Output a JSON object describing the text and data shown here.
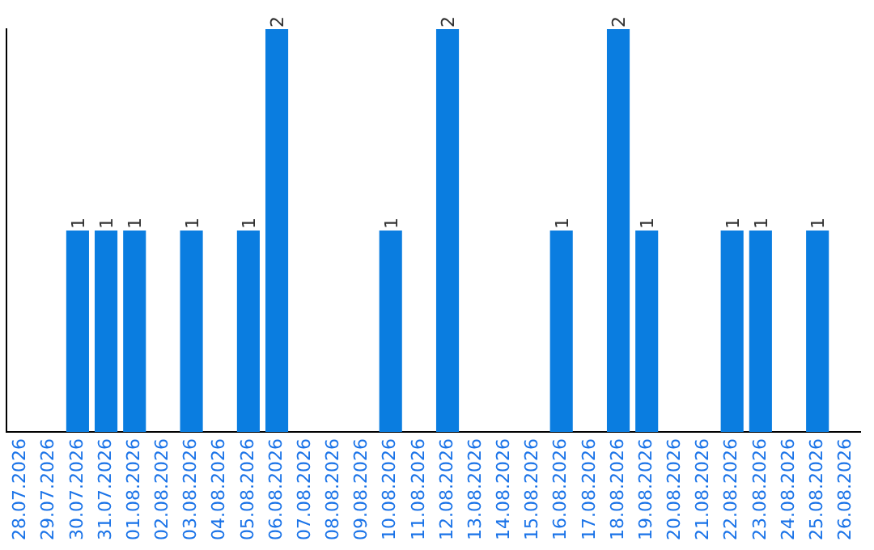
{
  "chart_data": {
    "type": "bar",
    "categories": [
      "28.07.2026",
      "29.07.2026",
      "30.07.2026",
      "31.07.2026",
      "01.08.2026",
      "02.08.2026",
      "03.08.2026",
      "04.08.2026",
      "05.08.2026",
      "06.08.2026",
      "07.08.2026",
      "08.08.2026",
      "09.08.2026",
      "10.08.2026",
      "11.08.2026",
      "12.08.2026",
      "13.08.2026",
      "14.08.2026",
      "15.08.2026",
      "16.08.2026",
      "17.08.2026",
      "18.08.2026",
      "19.08.2026",
      "20.08.2026",
      "21.08.2026",
      "22.08.2026",
      "23.08.2026",
      "24.08.2026",
      "25.08.2026",
      "26.08.2026"
    ],
    "values": [
      0,
      0,
      1,
      1,
      1,
      0,
      1,
      0,
      1,
      2,
      0,
      0,
      0,
      1,
      0,
      2,
      0,
      0,
      0,
      1,
      0,
      2,
      1,
      0,
      0,
      1,
      1,
      0,
      1,
      0
    ],
    "value_labels": [
      null,
      null,
      "1",
      "1",
      "1",
      null,
      "1",
      null,
      "1",
      "2",
      null,
      null,
      null,
      "1",
      null,
      "2",
      null,
      null,
      null,
      "1",
      null,
      "2",
      "1",
      null,
      null,
      "1",
      "1",
      null,
      "1",
      null
    ],
    "color": "#0a7de0",
    "ylim": [
      0,
      2
    ],
    "tick_labels": "x",
    "grid": false,
    "legend": false
  }
}
